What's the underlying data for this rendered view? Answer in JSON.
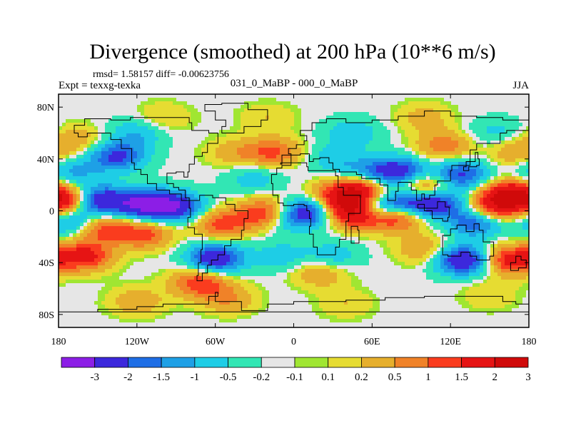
{
  "chart_data": {
    "type": "heatmap",
    "title": "Divergence (smoothed) at 200 hPa (10**6 m/s)",
    "stats": "rmsd= 1.58157 diff= -0.00623756",
    "left_label": "Expt = texxg-texka",
    "center_label": "031_0_MaBP - 000_0_MaBP",
    "right_label": "JJA",
    "x_ticks": [
      "180",
      "120W",
      "60W",
      "0",
      "60E",
      "120E",
      "180"
    ],
    "x_tick_values": [
      -180,
      -120,
      -60,
      0,
      60,
      120,
      180
    ],
    "y_ticks": [
      "80N",
      "40N",
      "0",
      "40S",
      "80S"
    ],
    "y_tick_values": [
      80,
      40,
      0,
      -40,
      -80
    ],
    "xlim": [
      -180,
      180
    ],
    "ylim": [
      -90,
      90
    ],
    "colorbar": {
      "labels": [
        "-3",
        "-2",
        "-1.5",
        "-1",
        "-0.5",
        "-0.2",
        "-0.1",
        "0.1",
        "0.2",
        "0.5",
        "1",
        "1.5",
        "2",
        "3"
      ],
      "colors": [
        "#8c1ee6",
        "#3c28dc",
        "#1e6ee6",
        "#1ea0e6",
        "#1ecde6",
        "#32e6b4",
        "#e6e6e6",
        "#a0e632",
        "#e6dc32",
        "#e6af2d",
        "#f08228",
        "#fa3c1e",
        "#e61414",
        "#d00a0a"
      ]
    },
    "anomalies": [
      {
        "lon": -150,
        "lat": 8,
        "value": -3.2
      },
      {
        "lon": -115,
        "lat": 5,
        "value": -3.0
      },
      {
        "lon": -90,
        "lat": 3,
        "value": -2.6
      },
      {
        "lon": -170,
        "lat": 8,
        "value": 2.4
      },
      {
        "lon": -165,
        "lat": -10,
        "value": -2.0
      },
      {
        "lon": -150,
        "lat": -13,
        "value": 2.4
      },
      {
        "lon": -115,
        "lat": -18,
        "value": 1.8
      },
      {
        "lon": -135,
        "lat": 42,
        "value": -2.2
      },
      {
        "lon": -120,
        "lat": 60,
        "value": -1.0
      },
      {
        "lon": -170,
        "lat": 30,
        "value": -1.2
      },
      {
        "lon": -165,
        "lat": 55,
        "value": 0.8
      },
      {
        "lon": -60,
        "lat": -37,
        "value": -2.8
      },
      {
        "lon": -72,
        "lat": -55,
        "value": 2.0
      },
      {
        "lon": -160,
        "lat": -35,
        "value": 2.3
      },
      {
        "lon": -55,
        "lat": -10,
        "value": 1.8
      },
      {
        "lon": -20,
        "lat": -2,
        "value": 2.4
      },
      {
        "lon": -5,
        "lat": -5,
        "value": -1.5
      },
      {
        "lon": -45,
        "lat": 45,
        "value": 0.8
      },
      {
        "lon": -30,
        "lat": 25,
        "value": -0.8
      },
      {
        "lon": -15,
        "lat": 45,
        "value": 1.6
      },
      {
        "lon": 15,
        "lat": 0,
        "value": -2.6
      },
      {
        "lon": 28,
        "lat": 10,
        "value": 1.4
      },
      {
        "lon": 40,
        "lat": 0,
        "value": 2.7
      },
      {
        "lon": 50,
        "lat": 15,
        "value": 3.0
      },
      {
        "lon": 55,
        "lat": -5,
        "value": 1.2
      },
      {
        "lon": 68,
        "lat": 3,
        "value": -2.8
      },
      {
        "lon": 92,
        "lat": 5,
        "value": -2.4
      },
      {
        "lon": 80,
        "lat": -3,
        "value": 3.0
      },
      {
        "lon": 112,
        "lat": 6,
        "value": -2.0
      },
      {
        "lon": 100,
        "lat": 18,
        "value": 2.0
      },
      {
        "lon": 80,
        "lat": 30,
        "value": -2.6
      },
      {
        "lon": 128,
        "lat": 28,
        "value": -2.2
      },
      {
        "lon": 140,
        "lat": -8,
        "value": -2.5
      },
      {
        "lon": 165,
        "lat": 12,
        "value": 3.2
      },
      {
        "lon": 150,
        "lat": 0,
        "value": 2.2
      },
      {
        "lon": 130,
        "lat": -38,
        "value": -3.0
      },
      {
        "lon": 165,
        "lat": -38,
        "value": 2.4
      },
      {
        "lon": 100,
        "lat": -30,
        "value": 1.0
      },
      {
        "lon": 30,
        "lat": -35,
        "value": -0.9
      },
      {
        "lon": 20,
        "lat": -48,
        "value": 1.0
      },
      {
        "lon": -10,
        "lat": -35,
        "value": -0.8
      },
      {
        "lon": 55,
        "lat": 30,
        "value": -1.0
      },
      {
        "lon": 30,
        "lat": 40,
        "value": -0.8
      },
      {
        "lon": 115,
        "lat": 50,
        "value": 1.4
      },
      {
        "lon": 170,
        "lat": 45,
        "value": 1.0
      },
      {
        "lon": 155,
        "lat": 60,
        "value": -0.7
      },
      {
        "lon": 45,
        "lat": 60,
        "value": -0.9
      },
      {
        "lon": -100,
        "lat": 72,
        "value": 0.6
      },
      {
        "lon": 100,
        "lat": 72,
        "value": 0.7
      },
      {
        "lon": -20,
        "lat": 72,
        "value": 0.5
      },
      {
        "lon": -120,
        "lat": -70,
        "value": 0.9
      },
      {
        "lon": 40,
        "lat": -72,
        "value": 0.5
      },
      {
        "lon": 150,
        "lat": -65,
        "value": 0.5
      },
      {
        "lon": -50,
        "lat": -68,
        "value": 1.0
      }
    ]
  }
}
